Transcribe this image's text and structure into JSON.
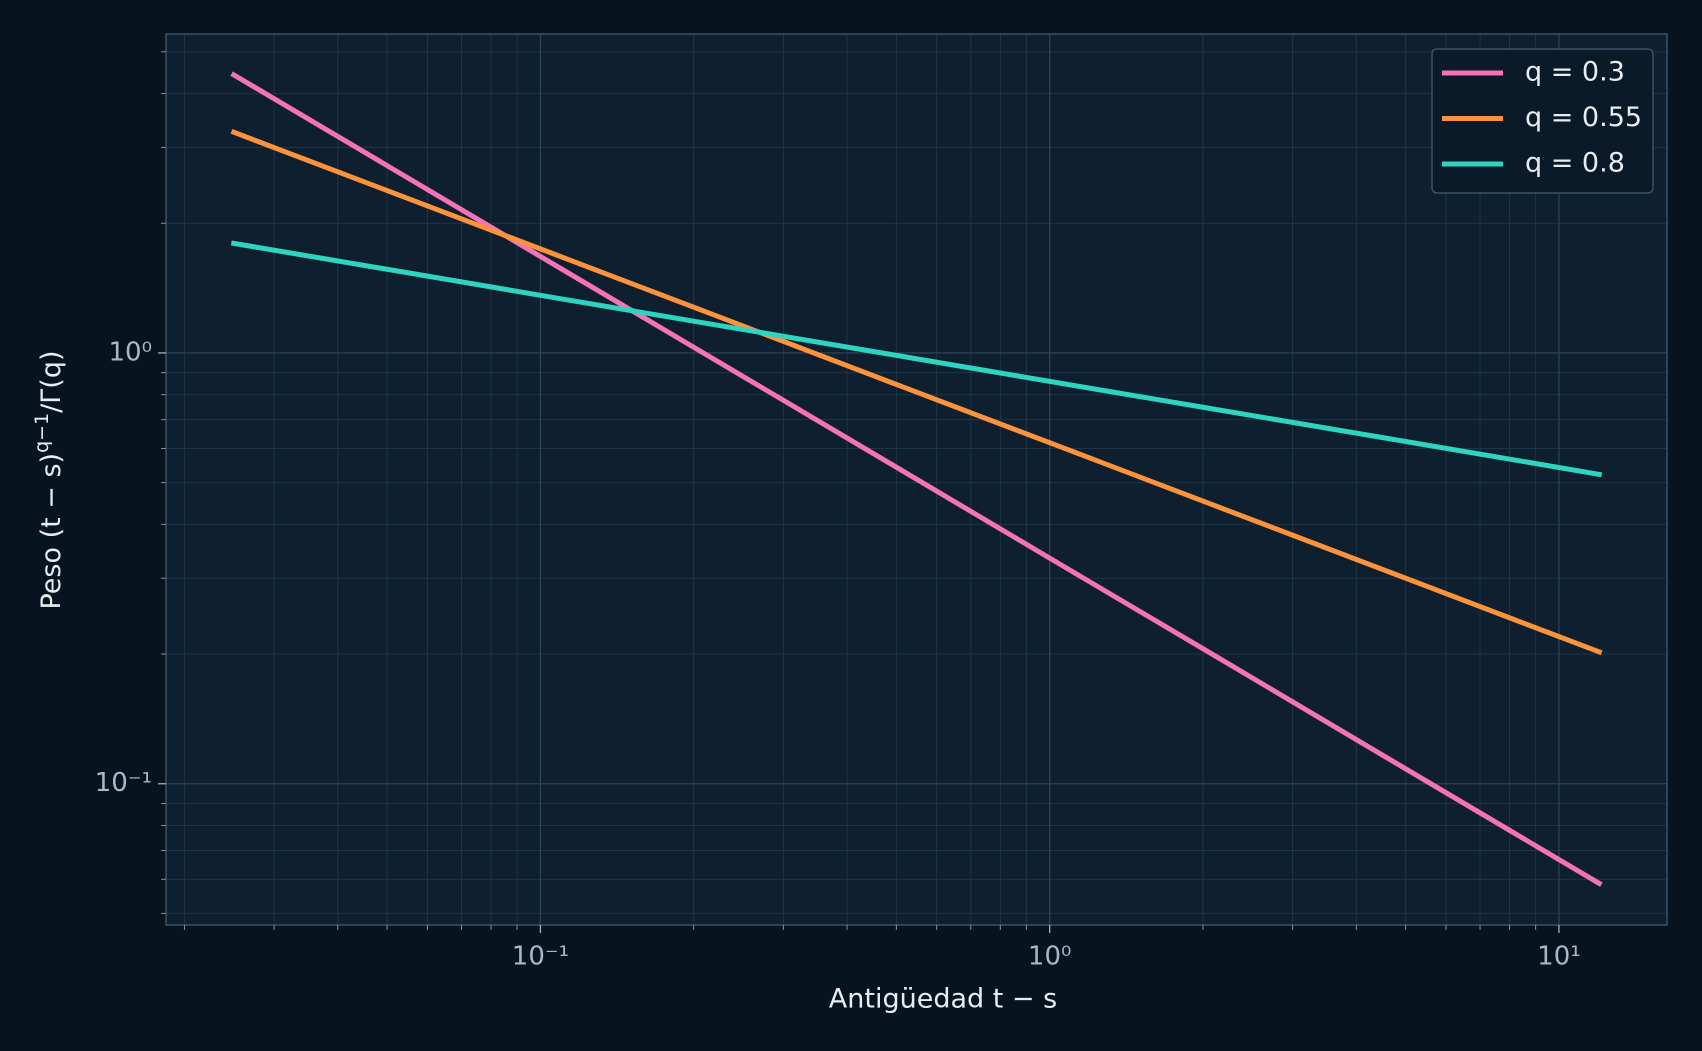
{
  "chart_data": {
    "type": "line",
    "xlabel": "Antigüedad t − s",
    "ylabel": {
      "text": "Peso (t − s)",
      "sup": "q−1",
      "tail": "/Γ(q)"
    },
    "xscale": "log",
    "yscale": "log",
    "grid": true,
    "legend": "upper right",
    "x": [
      0.025,
      0.05,
      0.1,
      0.2,
      0.5,
      1,
      2,
      5,
      12
    ],
    "series": [
      {
        "name": "q = 0.3",
        "color": "#f472b6",
        "values": [
          4.421,
          2.722,
          1.675,
          1.031,
          0.543,
          0.334,
          0.2058,
          0.1083,
          0.0587
        ]
      },
      {
        "name": "q = 0.55",
        "color": "#fb923c",
        "values": [
          3.254,
          2.382,
          1.744,
          1.277,
          0.845,
          0.619,
          0.453,
          0.3,
          0.2023
        ]
      },
      {
        "name": "q = 0.8",
        "color": "#2dd4bf",
        "values": [
          1.796,
          1.564,
          1.361,
          1.185,
          0.987,
          0.859,
          0.748,
          0.623,
          0.5226
        ]
      }
    ],
    "xlim": [
      0.0184,
      16.3
    ],
    "ylim": [
      0.047,
      5.5
    ],
    "xticks": [
      {
        "value": 0.1,
        "label": "10⁻¹"
      },
      {
        "value": 1,
        "label": "10⁰"
      },
      {
        "value": 10,
        "label": "10¹"
      }
    ],
    "yticks": [
      {
        "value": 0.1,
        "label": "10⁻¹"
      },
      {
        "value": 1,
        "label": "10⁰"
      }
    ],
    "xminorticks": [
      0.02,
      0.03,
      0.04,
      0.05,
      0.06,
      0.07,
      0.08,
      0.09,
      0.2,
      0.3,
      0.4,
      0.5,
      0.6,
      0.7,
      0.8,
      0.9,
      2,
      3,
      4,
      5,
      6,
      7,
      8,
      9
    ],
    "yminorticks": [
      0.05,
      0.06,
      0.07,
      0.08,
      0.09,
      0.2,
      0.3,
      0.4,
      0.5,
      0.6,
      0.7,
      0.8,
      0.9,
      2,
      3,
      4,
      5
    ]
  }
}
